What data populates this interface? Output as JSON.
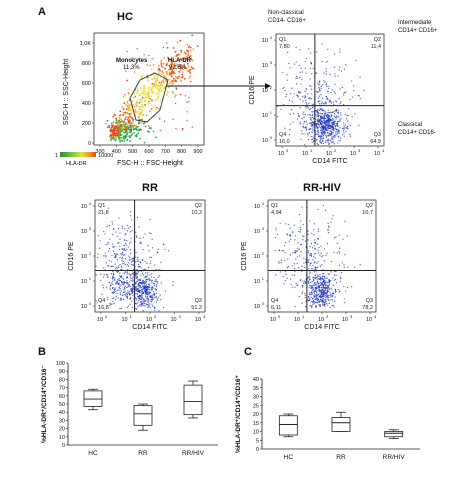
{
  "panel_letters": {
    "a": "A",
    "b": "B",
    "c": "C"
  },
  "colorbar": {
    "label": "HLA-DR",
    "min": "1",
    "max": "10000"
  },
  "annotations": {
    "non_classical": [
      "Non-classical",
      "CD14- CD16+"
    ],
    "intermediate": [
      "Intermediate",
      "CD14+ CD16+"
    ],
    "classical": [
      "Classical",
      "CD14+ CD16-"
    ]
  },
  "colors": {
    "dots": "#1a2fb8",
    "gate": "#333333",
    "heat_low": "#2aa84a",
    "heat_mid": "#e8e23a",
    "heat_high": "#e34a1f"
  },
  "chart_data": [
    {
      "type": "scatter",
      "title": "HC",
      "xlabel": "FSC-H :: FSC-Height",
      "ylabel": "SSC-H :: SSC-Height",
      "xticks": [
        "300",
        "400",
        "500",
        "600",
        "700",
        "800",
        "900"
      ],
      "yticks": [
        "1,0K",
        "800",
        "600",
        "400",
        "200",
        "0"
      ],
      "gates": [
        {
          "name": "Monocytes",
          "value": "11,3%"
        },
        {
          "name": "HLA-DR",
          "value": "92,8%"
        }
      ]
    },
    {
      "type": "scatter",
      "title": "",
      "xlabel": "CD14 FITC",
      "ylabel": "CD16 PE",
      "xticks": [
        "10",
        "10",
        "10",
        "10",
        "10"
      ],
      "xexp": [
        "0",
        "1",
        "2",
        "3",
        "4"
      ],
      "yticks": [
        "10",
        "10",
        "10",
        "10",
        "10"
      ],
      "yexp": [
        "4",
        "3",
        "2",
        "1",
        "0"
      ],
      "quadrants": [
        {
          "name": "Q1",
          "value": "7,80"
        },
        {
          "name": "Q2",
          "value": "11,4"
        },
        {
          "name": "Q3",
          "value": "64,9"
        },
        {
          "name": "Q4",
          "value": "16,0"
        }
      ]
    },
    {
      "type": "scatter",
      "title": "RR",
      "xlabel": "CD14 FITC",
      "ylabel": "CD16 PE",
      "xticks": [
        "10",
        "10",
        "10",
        "10",
        "10"
      ],
      "xexp": [
        "0",
        "1",
        "2",
        "3",
        "4"
      ],
      "yticks": [
        "10",
        "10",
        "10",
        "10",
        "10"
      ],
      "yexp": [
        "4",
        "3",
        "2",
        "1",
        "0"
      ],
      "quadrants": [
        {
          "name": "Q1",
          "value": "21,8"
        },
        {
          "name": "Q2",
          "value": "10,3"
        },
        {
          "name": "Q3",
          "value": "51,2"
        },
        {
          "name": "Q4",
          "value": "16,8"
        }
      ]
    },
    {
      "type": "scatter",
      "title": "RR-HIV",
      "xlabel": "CD14 FITC",
      "ylabel": "CD16 PE",
      "xticks": [
        "10",
        "10",
        "10",
        "10",
        "10"
      ],
      "xexp": [
        "0",
        "1",
        "2",
        "3",
        "4"
      ],
      "yticks": [
        "10",
        "10",
        "10",
        "10",
        "10"
      ],
      "yexp": [
        "4",
        "3",
        "2",
        "1",
        "0"
      ],
      "quadrants": [
        {
          "name": "Q1",
          "value": "4,94"
        },
        {
          "name": "Q2",
          "value": "10,7"
        },
        {
          "name": "Q3",
          "value": "78,2"
        },
        {
          "name": "Q4",
          "value": "6,11"
        }
      ]
    },
    {
      "type": "box",
      "title": "",
      "ylabel": "%HLA-DR⁺/CD14⁺/CD16⁻",
      "categories": [
        "HC",
        "RR",
        "RR/HIV"
      ],
      "ylim": [
        0,
        100
      ],
      "yticks": [
        "0",
        "10",
        "20",
        "30",
        "40",
        "50",
        "60",
        "70",
        "80",
        "90",
        "100"
      ],
      "boxes": [
        {
          "min": 43,
          "q1": 47,
          "median": 56,
          "q3": 66,
          "max": 68
        },
        {
          "min": 18,
          "q1": 24,
          "median": 38,
          "q3": 48,
          "max": 50
        },
        {
          "min": 33,
          "q1": 37,
          "median": 53,
          "q3": 73,
          "max": 78
        }
      ]
    },
    {
      "type": "box",
      "title": "",
      "ylabel": "%HLA-DR⁺/CD14⁺/CD16⁺",
      "categories": [
        "HC",
        "RR",
        "RR/HIV"
      ],
      "ylim": [
        0,
        40
      ],
      "yticks": [
        "0",
        "5",
        "10",
        "15",
        "20",
        "25",
        "30",
        "35",
        "40"
      ],
      "boxes": [
        {
          "min": 7,
          "q1": 8,
          "median": 14,
          "q3": 19,
          "max": 20
        },
        {
          "min": 10,
          "q1": 10,
          "median": 15,
          "q3": 18,
          "max": 21
        },
        {
          "min": 6,
          "q1": 7,
          "median": 9,
          "q3": 10,
          "max": 11
        }
      ]
    }
  ]
}
